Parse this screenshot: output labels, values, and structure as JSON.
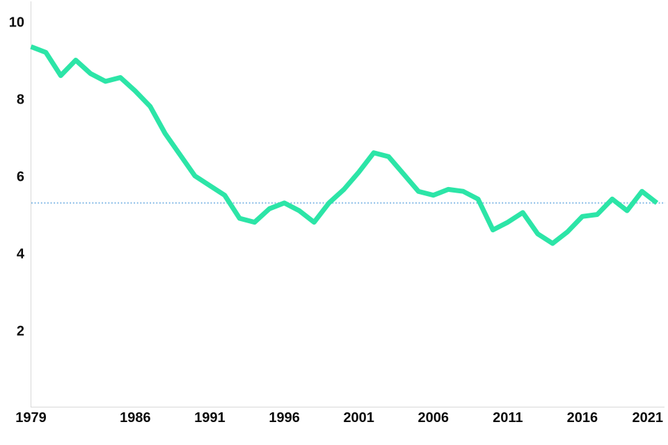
{
  "chart_data": {
    "type": "line",
    "title": "",
    "xlabel": "",
    "ylabel": "",
    "grid": false,
    "legend": false,
    "x": [
      1979,
      1980,
      1981,
      1982,
      1983,
      1984,
      1985,
      1986,
      1987,
      1988,
      1989,
      1990,
      1991,
      1992,
      1993,
      1994,
      1995,
      1996,
      1997,
      1998,
      1999,
      2000,
      2001,
      2002,
      2003,
      2004,
      2005,
      2006,
      2007,
      2008,
      2009,
      2010,
      2011,
      2012,
      2013,
      2014,
      2015,
      2016,
      2017,
      2018,
      2019,
      2020,
      2021
    ],
    "values": [
      9.35,
      9.2,
      8.6,
      9.0,
      8.65,
      8.45,
      8.55,
      8.2,
      7.8,
      7.1,
      6.55,
      6.0,
      5.75,
      5.5,
      4.9,
      4.8,
      5.15,
      5.3,
      5.1,
      4.8,
      5.3,
      5.65,
      6.1,
      6.6,
      6.5,
      6.05,
      5.6,
      5.5,
      5.65,
      5.6,
      5.4,
      4.6,
      4.8,
      5.05,
      4.5,
      4.25,
      4.55,
      4.95,
      5.0,
      5.4,
      5.1,
      5.6,
      5.3
    ],
    "xticks": [
      1979,
      1986,
      1991,
      1996,
      2001,
      2006,
      2011,
      2016,
      2021
    ],
    "yticks": [
      2,
      4,
      6,
      8,
      10
    ],
    "xlim": [
      1979,
      2021
    ],
    "ylim": [
      0,
      10.55
    ],
    "reference_line": 5.3,
    "colors": {
      "line": "#2ce5a7",
      "reference": "#8fc0e8",
      "axis": "#d8d8d8",
      "tick_labels": "#0b0b0b",
      "background": "#ffffff"
    }
  }
}
